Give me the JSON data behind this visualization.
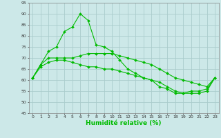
{
  "x": [
    0,
    1,
    2,
    3,
    4,
    5,
    6,
    7,
    8,
    9,
    10,
    11,
    12,
    13,
    14,
    15,
    16,
    17,
    18,
    19,
    20,
    21,
    22,
    23
  ],
  "line1": [
    61,
    67,
    73,
    75,
    82,
    84,
    90,
    87,
    76,
    75,
    73,
    69,
    65,
    63,
    61,
    60,
    57,
    56,
    54,
    54,
    55,
    55,
    56,
    61
  ],
  "line2": [
    61,
    67,
    70,
    70,
    70,
    70,
    71,
    72,
    72,
    72,
    72,
    71,
    70,
    69,
    68,
    67,
    65,
    63,
    61,
    60,
    59,
    58,
    57,
    61
  ],
  "line3": [
    61,
    66,
    68,
    69,
    69,
    68,
    67,
    66,
    66,
    65,
    65,
    64,
    63,
    62,
    61,
    60,
    59,
    57,
    55,
    54,
    54,
    54,
    55,
    61
  ],
  "bg_color": "#cce8e8",
  "grid_color": "#aacccc",
  "line_color": "#00bb00",
  "xlabel": "Humidité relative (%)",
  "ylim": [
    45,
    95
  ],
  "xlim": [
    -0.5,
    23.5
  ],
  "yticks": [
    45,
    50,
    55,
    60,
    65,
    70,
    75,
    80,
    85,
    90,
    95
  ],
  "xticks": [
    0,
    1,
    2,
    3,
    4,
    5,
    6,
    7,
    8,
    9,
    10,
    11,
    12,
    13,
    14,
    15,
    16,
    17,
    18,
    19,
    20,
    21,
    22,
    23
  ]
}
